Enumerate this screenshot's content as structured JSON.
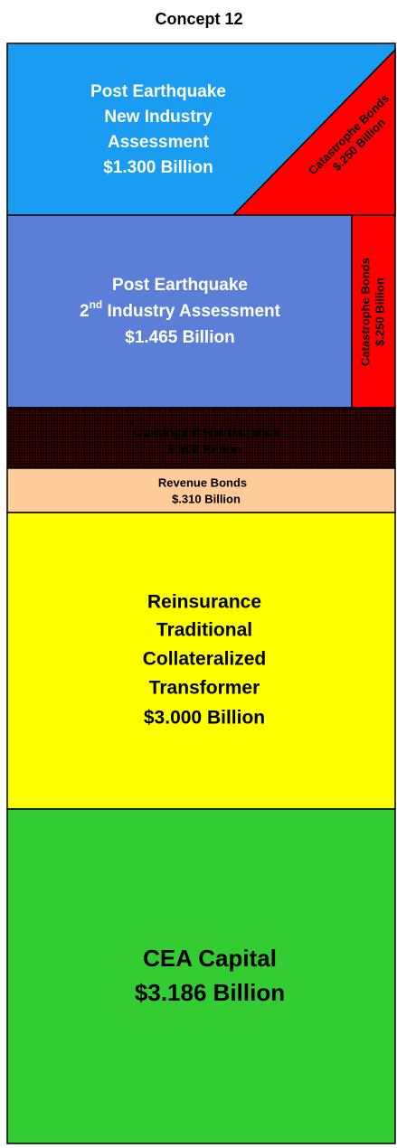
{
  "title": "Concept 12",
  "layers": [
    {
      "lines": [
        "Post Earthquake",
        "New Industry",
        "Assessment",
        "$1.300 Billion"
      ],
      "side": {
        "lines": [
          "Catastrophe Bonds",
          "$.250 Billion"
        ]
      }
    },
    {
      "lines": [
        "Post Earthquake",
        {
          "parts": [
            "2",
            "nd",
            " Industry Assessment"
          ]
        },
        "$1.465 Billion"
      ],
      "side": {
        "lines": [
          "Catastrophe Bonds",
          "$.250 Billion"
        ]
      }
    },
    {
      "lines": [
        {
          "parts": [
            "*",
            "Contingent Reinsurance"
          ]
        },
        "$.500 Billion"
      ]
    },
    {
      "lines": [
        "Revenue Bonds",
        "$.310 Billion"
      ]
    },
    {
      "lines": [
        "Reinsurance",
        "Traditional",
        "Collateralized",
        "Transformer",
        "$3.000 Billion"
      ]
    },
    {
      "lines": [
        "CEA Capital",
        "$3.186 Billion"
      ]
    }
  ]
}
